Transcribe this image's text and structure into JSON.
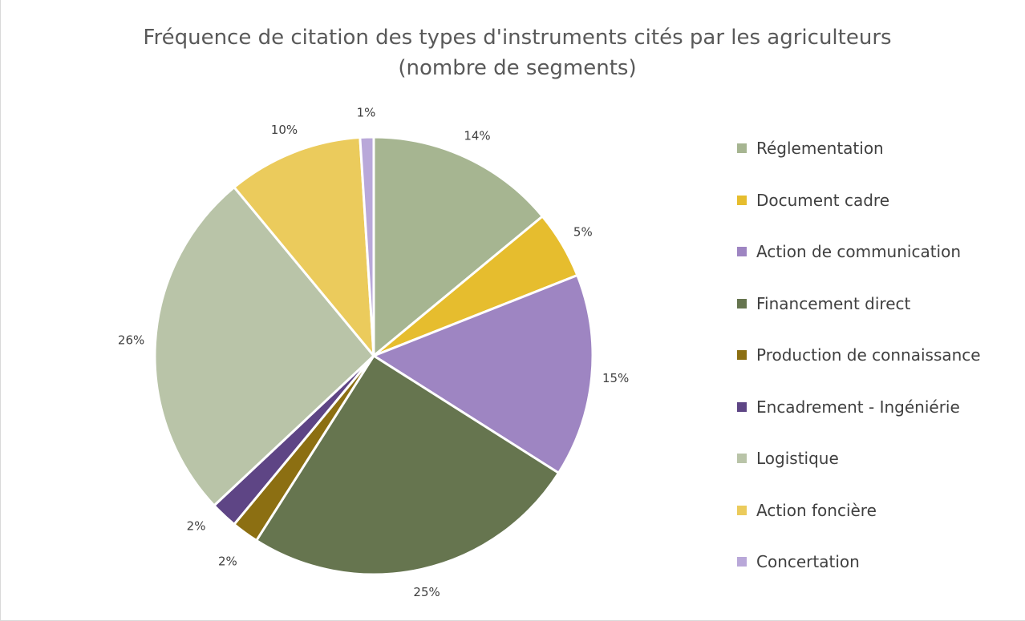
{
  "chart_data": {
    "type": "pie",
    "title": "Fréquence de citation des types d'instruments cités par les agriculteurs (nombre de segments)",
    "title_lines": [
      "Fréquence de citation des types d'instruments cités par les agriculteurs",
      "(nombre de segments)"
    ],
    "legend_position": "right",
    "slices": [
      {
        "label": "Réglementation",
        "value": 14,
        "display": "14%",
        "color": "#a6b591"
      },
      {
        "label": "Document cadre",
        "value": 5,
        "display": "5%",
        "color": "#e6bd2e"
      },
      {
        "label": "Action de communication",
        "value": 15,
        "display": "15%",
        "color": "#9e85c2"
      },
      {
        "label": "Financement direct",
        "value": 25,
        "display": "25%",
        "color": "#66754f"
      },
      {
        "label": "Production de connaissance",
        "value": 2,
        "display": "2%",
        "color": "#8c6f12"
      },
      {
        "label": "Encadrement - Ingéniérie",
        "value": 2,
        "display": "2%",
        "color": "#5e4585"
      },
      {
        "label": "Logistique",
        "value": 26,
        "display": "26%",
        "color": "#b9c4a8"
      },
      {
        "label": "Action foncière",
        "value": 10,
        "display": "10%",
        "color": "#ebcb5c"
      },
      {
        "label": "Concertation",
        "value": 1,
        "display": "1%",
        "color": "#b9a8d9"
      }
    ]
  }
}
